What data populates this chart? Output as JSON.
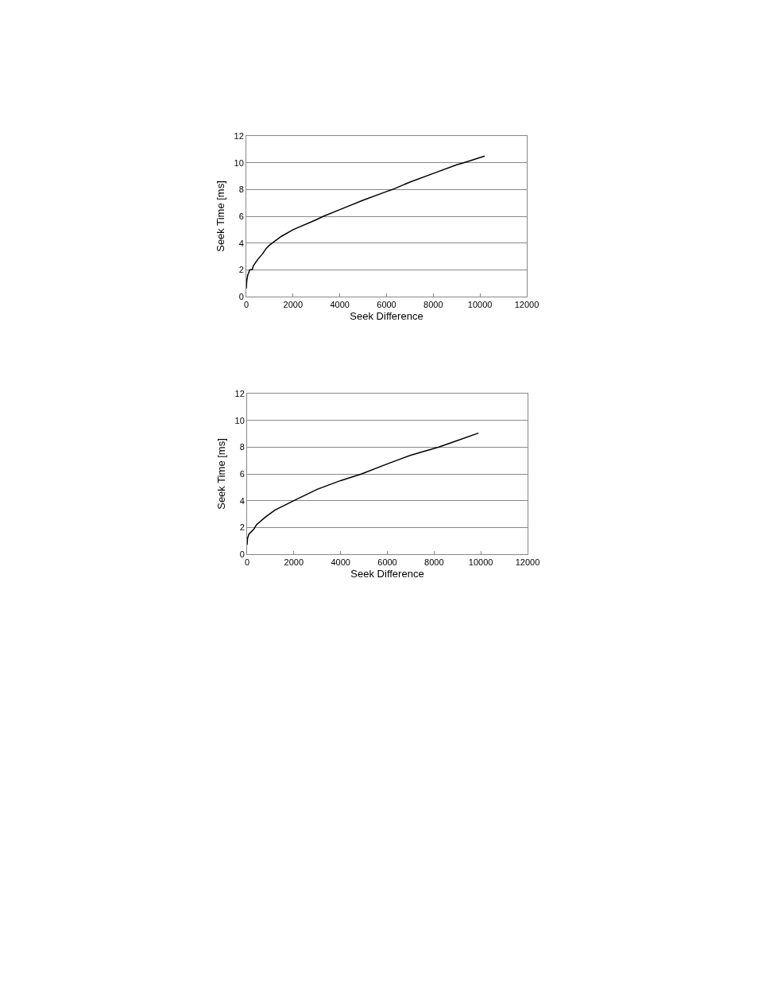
{
  "chart_data": [
    {
      "type": "line",
      "xlabel": "Seek Difference",
      "ylabel": "Seek Time [ms]",
      "xlim": [
        0,
        12000
      ],
      "xticks": [
        0,
        2000,
        4000,
        6000,
        8000,
        10000,
        12000
      ],
      "ylim": [
        0,
        12
      ],
      "yticks": [
        0,
        2,
        4,
        6,
        8,
        10,
        12
      ],
      "grid": "y",
      "marker": "none",
      "line_style": "solid",
      "series": [
        {
          "color": "#000000",
          "x": [
            0,
            20,
            60,
            150,
            250,
            300,
            500,
            700,
            850,
            1000,
            1500,
            2000,
            3000,
            3300,
            4000,
            5000,
            6000,
            6250,
            7000,
            8000,
            9000,
            9300,
            10200
          ],
          "values": [
            0.6,
            1.2,
            1.6,
            2.0,
            2.0,
            2.3,
            2.8,
            3.2,
            3.6,
            3.85,
            4.5,
            5.0,
            5.75,
            6.0,
            6.5,
            7.2,
            7.85,
            8.0,
            8.55,
            9.2,
            9.85,
            10.0,
            10.5
          ]
        }
      ]
    },
    {
      "type": "line",
      "xlabel": "Seek Difference",
      "ylabel": "Seek Time [ms]",
      "xlim": [
        0,
        12000
      ],
      "xticks": [
        0,
        2000,
        4000,
        6000,
        8000,
        10000,
        12000
      ],
      "ylim": [
        0,
        12
      ],
      "yticks": [
        0,
        2,
        4,
        6,
        8,
        10,
        12
      ],
      "grid": "y",
      "marker": "none",
      "line_style": "solid",
      "series": [
        {
          "color": "#000000",
          "x": [
            0,
            20,
            80,
            300,
            400,
            800,
            1200,
            2000,
            3000,
            4000,
            4900,
            6000,
            7000,
            8200,
            9000,
            9900
          ],
          "values": [
            0.7,
            1.2,
            1.5,
            1.9,
            2.2,
            2.8,
            3.3,
            4.0,
            4.85,
            5.5,
            6.0,
            6.75,
            7.4,
            8.0,
            8.5,
            9.05
          ]
        }
      ]
    }
  ]
}
